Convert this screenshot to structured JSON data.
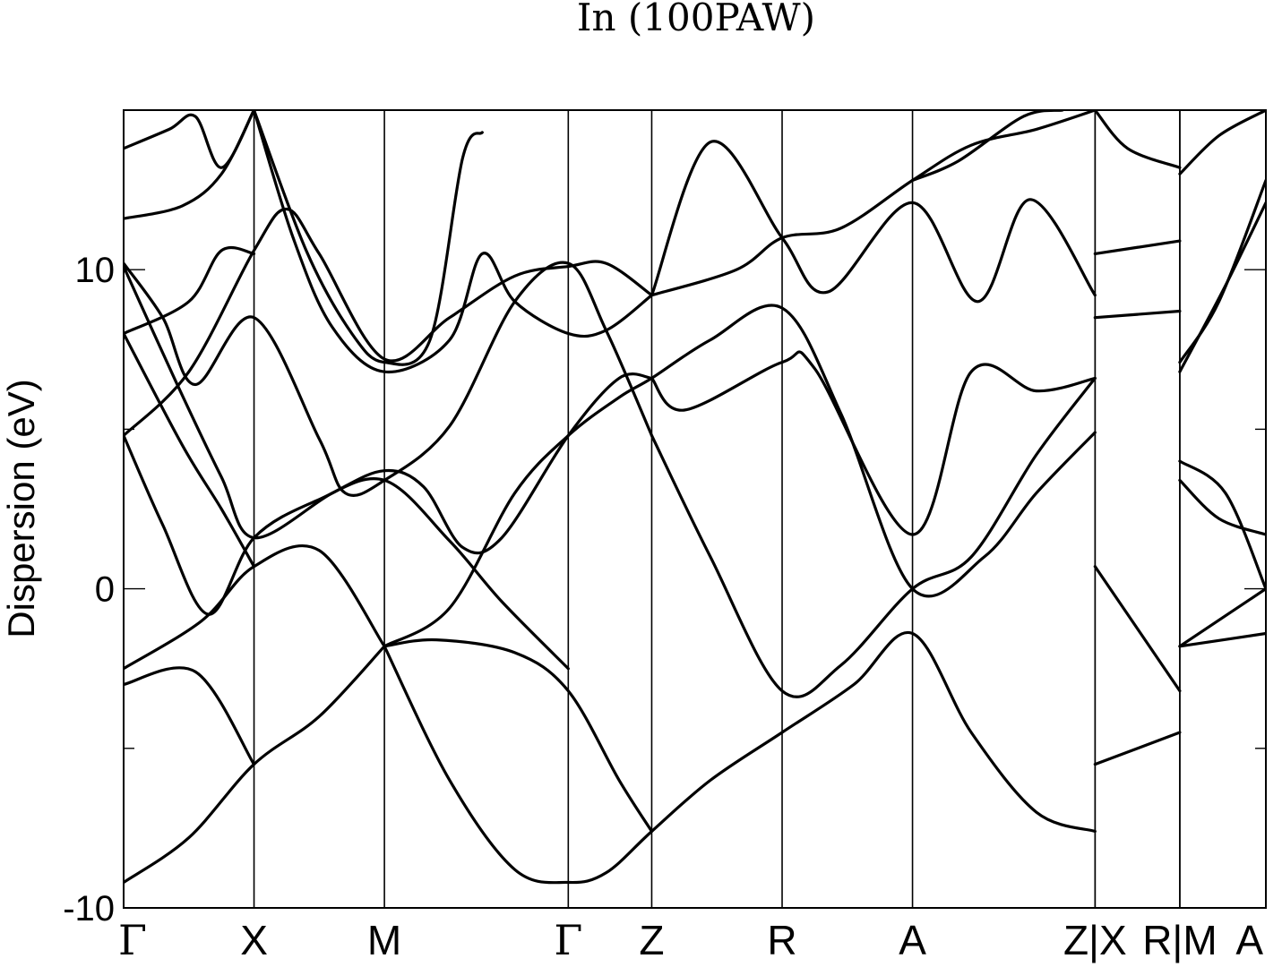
{
  "chart_data": {
    "type": "line",
    "title": "In (100PAW)",
    "ylabel": "Dispersion (eV)",
    "xlabel": "",
    "ylim": [
      -10,
      15
    ],
    "y_ticks": [
      -10,
      0,
      10
    ],
    "y_minor_ticks": [
      -5,
      5
    ],
    "grid": false,
    "legend": "none",
    "line_color": "#000000",
    "kpath_labels": [
      "Γ",
      "X",
      "M",
      "Γ",
      "Z",
      "R",
      "A",
      "Z|X",
      "R|M",
      "A"
    ],
    "kpath_positions": [
      0,
      1.0,
      2.0,
      3.41,
      4.05,
      5.05,
      6.05,
      7.45,
      8.1,
      8.76
    ],
    "segment_breaks": [
      7.45,
      8.1
    ],
    "series": [
      {
        "points": [
          [
            0,
            -9.2
          ],
          [
            0.5,
            -7.8
          ],
          [
            1.0,
            -5.5
          ],
          [
            1.5,
            -4.0
          ],
          [
            2.0,
            -1.8
          ]
        ]
      },
      {
        "points": [
          [
            0,
            -3.0
          ],
          [
            0.55,
            -2.6
          ],
          [
            1.0,
            -5.5
          ]
        ]
      },
      {
        "points": [
          [
            0,
            -2.5
          ],
          [
            0.6,
            -1.0
          ],
          [
            1.0,
            0.7
          ],
          [
            1.5,
            1.2
          ],
          [
            2.0,
            -1.8
          ]
        ]
      },
      {
        "points": [
          [
            0,
            4.8
          ],
          [
            0.3,
            2.0
          ],
          [
            0.65,
            -0.8
          ],
          [
            1.0,
            1.6
          ],
          [
            1.5,
            2.8
          ],
          [
            2.0,
            3.4
          ],
          [
            2.5,
            1.5
          ],
          [
            2.9,
            -0.4
          ],
          [
            3.41,
            -2.5
          ]
        ]
      },
      {
        "points": [
          [
            0,
            8.0
          ],
          [
            0.45,
            4.5
          ],
          [
            0.75,
            2.5
          ],
          [
            1.0,
            0.7
          ]
        ]
      },
      {
        "points": [
          [
            0,
            10.1
          ],
          [
            0.4,
            6.5
          ],
          [
            0.75,
            3.5
          ],
          [
            1.0,
            1.6
          ],
          [
            1.6,
            3.0
          ],
          [
            2.0,
            3.7
          ],
          [
            2.3,
            3.2
          ],
          [
            2.6,
            1.3
          ],
          [
            2.9,
            1.6
          ],
          [
            3.41,
            4.8
          ],
          [
            3.8,
            6.6
          ],
          [
            4.05,
            6.6
          ]
        ]
      },
      {
        "points": [
          [
            0,
            10.2
          ],
          [
            0.3,
            8.5
          ],
          [
            0.55,
            6.4
          ],
          [
            1.0,
            8.5
          ],
          [
            1.5,
            4.7
          ],
          [
            1.7,
            3.0
          ],
          [
            2.0,
            3.4
          ],
          [
            2.5,
            5.1
          ],
          [
            3.0,
            9.0
          ],
          [
            3.41,
            10.2
          ],
          [
            3.7,
            8.1
          ],
          [
            4.05,
            4.8
          ]
        ]
      },
      {
        "points": [
          [
            0,
            4.8
          ],
          [
            0.5,
            6.8
          ],
          [
            1.0,
            10.6
          ],
          [
            1.25,
            11.9
          ],
          [
            1.5,
            10.5
          ],
          [
            2.0,
            7.2
          ],
          [
            2.5,
            8.5
          ],
          [
            3.0,
            9.8
          ],
          [
            3.41,
            10.1
          ],
          [
            3.7,
            10.2
          ],
          [
            4.05,
            9.2
          ]
        ]
      },
      {
        "points": [
          [
            0,
            8.0
          ],
          [
            0.5,
            9.0
          ],
          [
            0.75,
            10.6
          ],
          [
            1.0,
            10.5
          ]
        ]
      },
      {
        "points": [
          [
            0,
            11.6
          ],
          [
            0.45,
            12.0
          ],
          [
            0.75,
            13.0
          ],
          [
            1.0,
            15.0
          ]
        ]
      },
      {
        "points": [
          [
            0,
            13.8
          ],
          [
            0.35,
            14.4
          ],
          [
            0.55,
            14.8
          ],
          [
            0.75,
            13.2
          ],
          [
            1.0,
            15.0
          ]
        ]
      },
      {
        "points": [
          [
            1.0,
            15.0
          ],
          [
            1.3,
            11.0
          ],
          [
            1.6,
            8.2
          ],
          [
            2.0,
            6.8
          ],
          [
            2.5,
            7.8
          ],
          [
            2.75,
            10.5
          ],
          [
            3.0,
            9.0
          ],
          [
            3.41,
            8.0
          ],
          [
            3.7,
            8.1
          ],
          [
            4.05,
            9.2
          ]
        ]
      },
      {
        "points": [
          [
            1.0,
            15.0
          ],
          [
            1.4,
            10.6
          ],
          [
            1.75,
            8.0
          ],
          [
            2.0,
            7.1
          ],
          [
            2.35,
            7.8
          ],
          [
            2.6,
            13.5
          ],
          [
            2.75,
            14.3
          ]
        ]
      },
      {
        "points": [
          [
            2.0,
            -1.8
          ],
          [
            2.5,
            -6.0
          ],
          [
            3.0,
            -8.8
          ],
          [
            3.41,
            -9.2
          ],
          [
            3.7,
            -8.9
          ],
          [
            4.05,
            -7.6
          ],
          [
            4.5,
            -6.0
          ],
          [
            5.05,
            -4.5
          ],
          [
            5.6,
            -3.0
          ],
          [
            6.05,
            -1.4
          ],
          [
            6.5,
            -4.5
          ],
          [
            7.0,
            -7.0
          ],
          [
            7.45,
            -7.6
          ]
        ]
      },
      {
        "points": [
          [
            2.0,
            -1.8
          ],
          [
            2.4,
            -1.6
          ],
          [
            3.0,
            -2.0
          ],
          [
            3.41,
            -3.2
          ],
          [
            3.8,
            -6.0
          ],
          [
            4.05,
            -7.6
          ]
        ]
      },
      {
        "points": [
          [
            2.0,
            -1.8
          ],
          [
            2.5,
            -0.6
          ],
          [
            3.0,
            3.0
          ],
          [
            3.41,
            4.8
          ],
          [
            3.8,
            6.0
          ],
          [
            4.05,
            6.6
          ],
          [
            4.5,
            7.8
          ],
          [
            5.05,
            8.8
          ],
          [
            5.5,
            5.5
          ],
          [
            6.05,
            0.0
          ],
          [
            6.6,
            1.0
          ],
          [
            7.0,
            3.0
          ],
          [
            7.45,
            4.9
          ]
        ]
      },
      {
        "points": [
          [
            4.05,
            4.8
          ],
          [
            4.5,
            1.0
          ],
          [
            5.05,
            -3.2
          ],
          [
            5.5,
            -2.4
          ],
          [
            6.05,
            0.0
          ],
          [
            6.5,
            1.0
          ],
          [
            7.0,
            4.2
          ],
          [
            7.45,
            6.6
          ]
        ]
      },
      {
        "points": [
          [
            4.05,
            6.6
          ],
          [
            4.3,
            5.6
          ],
          [
            5.05,
            7.1
          ],
          [
            5.3,
            6.9
          ],
          [
            6.05,
            1.7
          ],
          [
            6.5,
            6.8
          ],
          [
            7.0,
            6.2
          ],
          [
            7.45,
            6.6
          ]
        ]
      },
      {
        "points": [
          [
            4.05,
            9.2
          ],
          [
            4.7,
            10.0
          ],
          [
            5.05,
            11.0
          ],
          [
            5.5,
            11.3
          ],
          [
            6.05,
            12.8
          ],
          [
            6.5,
            13.9
          ],
          [
            7.0,
            14.4
          ],
          [
            7.45,
            15.0
          ]
        ]
      },
      {
        "points": [
          [
            4.05,
            9.2
          ],
          [
            4.5,
            14.0
          ],
          [
            5.05,
            11.0
          ],
          [
            5.4,
            9.3
          ],
          [
            6.05,
            12.1
          ],
          [
            6.55,
            9.0
          ],
          [
            6.95,
            12.2
          ],
          [
            7.45,
            9.2
          ]
        ]
      },
      {
        "points": [
          [
            6.05,
            12.8
          ],
          [
            6.4,
            13.4
          ],
          [
            6.9,
            14.8
          ],
          [
            7.2,
            15.0
          ]
        ]
      },
      {
        "points": [
          [
            7.45,
            10.5
          ],
          [
            8.1,
            10.9
          ]
        ]
      },
      {
        "points": [
          [
            7.45,
            8.5
          ],
          [
            8.1,
            8.7
          ]
        ]
      },
      {
        "points": [
          [
            7.45,
            0.7
          ],
          [
            8.1,
            -3.2
          ]
        ]
      },
      {
        "points": [
          [
            7.45,
            -5.5
          ],
          [
            8.1,
            -4.5
          ]
        ]
      },
      {
        "points": [
          [
            7.45,
            15.0
          ],
          [
            7.7,
            13.8
          ],
          [
            8.1,
            13.2
          ]
        ]
      },
      {
        "points": [
          [
            8.1,
            -1.8
          ],
          [
            8.76,
            -1.4
          ]
        ]
      },
      {
        "points": [
          [
            8.1,
            -1.8
          ],
          [
            8.76,
            0.0
          ]
        ]
      },
      {
        "points": [
          [
            8.1,
            3.4
          ],
          [
            8.4,
            2.2
          ],
          [
            8.76,
            1.7
          ]
        ]
      },
      {
        "points": [
          [
            8.1,
            4.0
          ],
          [
            8.45,
            3.0
          ],
          [
            8.76,
            0.0
          ]
        ]
      },
      {
        "points": [
          [
            8.1,
            7.1
          ],
          [
            8.4,
            9.0
          ],
          [
            8.76,
            12.8
          ]
        ]
      },
      {
        "points": [
          [
            8.1,
            6.8
          ],
          [
            8.45,
            9.5
          ],
          [
            8.76,
            12.1
          ]
        ]
      },
      {
        "points": [
          [
            8.1,
            13.0
          ],
          [
            8.4,
            14.2
          ],
          [
            8.76,
            15.0
          ]
        ]
      }
    ]
  }
}
